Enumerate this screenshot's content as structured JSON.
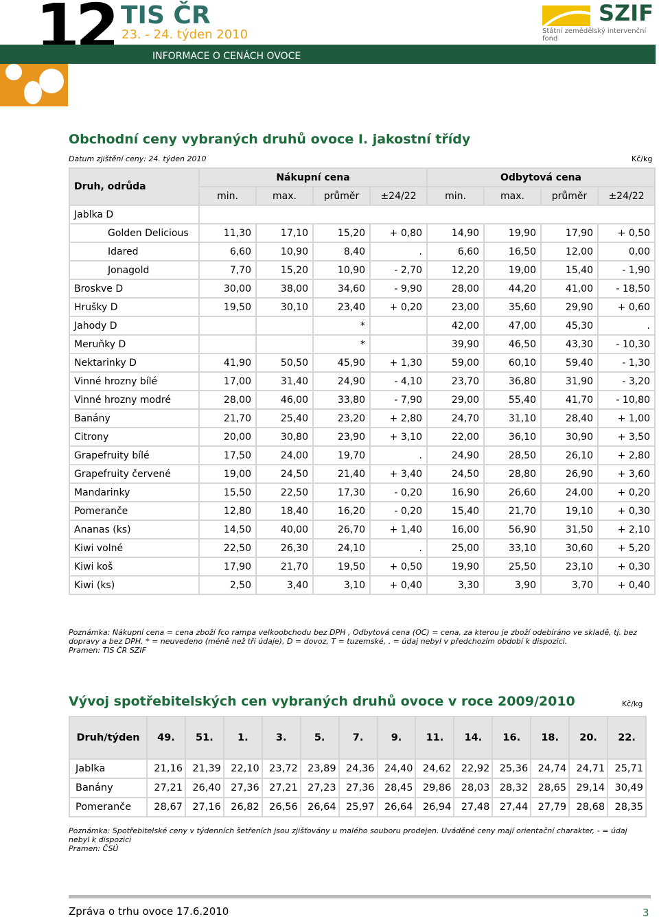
{
  "header": {
    "number": "12",
    "brand": "TIS ČR",
    "week": "23. - 24. týden 2010",
    "subtitle": "INFORMACE O CENÁCH OVOCE",
    "logo": "SZIF",
    "logo_sub": "Státní zemědělský intervenční fond"
  },
  "section1": {
    "title": "Obchodní ceny vybraných druhů ovoce I. jakostní třídy",
    "date": "Datum zjištění ceny: 24. týden 2010",
    "unit": "Kč/kg",
    "head": {
      "label": "Druh, odrůda",
      "groups": [
        "Nákupní cena",
        "Odbytová cena"
      ],
      "sub": [
        "min.",
        "max.",
        "průměr",
        "±24/22",
        "min.",
        "max.",
        "průměr",
        "±24/22"
      ]
    },
    "rows": [
      {
        "label": "Jablka D",
        "items": [
          [
            "Golden Delicious",
            "11,30",
            "17,10",
            "15,20",
            "+ 0,80",
            "14,90",
            "19,90",
            "17,90",
            "+ 0,50"
          ],
          [
            "Idared",
            "6,60",
            "10,90",
            "8,40",
            ".",
            "6,60",
            "16,50",
            "12,00",
            "0,00"
          ],
          [
            "Jonagold",
            "7,70",
            "15,20",
            "10,90",
            "- 2,70",
            "12,20",
            "19,00",
            "15,40",
            "- 1,90"
          ]
        ]
      },
      [
        "Broskve D",
        "30,00",
        "38,00",
        "34,60",
        "- 9,90",
        "28,00",
        "44,20",
        "41,00",
        "- 18,50"
      ],
      [
        "Hrušky D",
        "19,50",
        "30,10",
        "23,40",
        "+ 0,20",
        "23,00",
        "35,60",
        "29,90",
        "+ 0,60"
      ],
      [
        "Jahody D",
        null,
        null,
        "*",
        null,
        "42,00",
        "47,00",
        "45,30",
        "."
      ],
      [
        "Meruňky D",
        null,
        null,
        "*",
        null,
        "39,90",
        "46,50",
        "43,30",
        "- 10,30"
      ],
      [
        "Nektarinky D",
        "41,90",
        "50,50",
        "45,90",
        "+ 1,30",
        "59,00",
        "60,10",
        "59,40",
        "- 1,30"
      ],
      [
        "Vinné hrozny bílé",
        "17,00",
        "31,40",
        "24,90",
        "- 4,10",
        "23,70",
        "36,80",
        "31,90",
        "- 3,20"
      ],
      [
        "Vinné hrozny modré",
        "28,00",
        "46,00",
        "33,80",
        "- 7,90",
        "29,00",
        "55,40",
        "41,70",
        "- 10,80"
      ],
      [
        "Banány",
        "21,70",
        "25,40",
        "23,20",
        "+ 2,80",
        "24,70",
        "31,10",
        "28,40",
        "+ 1,00"
      ],
      [
        "Citrony",
        "20,00",
        "30,80",
        "23,90",
        "+ 3,10",
        "22,00",
        "36,10",
        "30,90",
        "+ 3,50"
      ],
      [
        "Grapefruity bílé",
        "17,50",
        "24,00",
        "19,70",
        ".",
        "24,90",
        "28,50",
        "26,10",
        "+ 2,80"
      ],
      [
        "Grapefruity červené",
        "19,00",
        "24,50",
        "21,40",
        "+ 3,40",
        "24,50",
        "28,80",
        "26,90",
        "+ 3,60"
      ],
      [
        "Mandarinky",
        "15,50",
        "22,50",
        "17,30",
        "- 0,20",
        "16,90",
        "26,60",
        "24,00",
        "+ 0,20"
      ],
      [
        "Pomeranče",
        "12,80",
        "18,40",
        "16,20",
        "- 0,20",
        "15,40",
        "21,70",
        "19,10",
        "+ 0,30"
      ],
      [
        "Ananas (ks)",
        "14,50",
        "40,00",
        "26,70",
        "+ 1,40",
        "16,00",
        "56,90",
        "31,50",
        "+ 2,10"
      ],
      [
        "Kiwi volné",
        "22,50",
        "26,30",
        "24,10",
        ".",
        "25,00",
        "33,10",
        "30,60",
        "+ 5,20"
      ],
      [
        "Kiwi koš",
        "17,90",
        "21,70",
        "19,50",
        "+ 0,50",
        "19,90",
        "25,50",
        "23,10",
        "+ 0,30"
      ],
      [
        "Kiwi (ks)",
        "2,50",
        "3,40",
        "3,10",
        "+ 0,40",
        "3,30",
        "3,90",
        "3,70",
        "+ 0,40"
      ]
    ],
    "note": "Poznámka: Nákupní cena = cena zboží fco rampa velkoobchodu bez DPH , Odbytová cena (OC) = cena, za kterou je zboží odebíráno ve skladě, tj. bez dopravy a bez DPH. * = neuvedeno (méně než tři údaje), D = dovoz, T = tuzemské, . = údaj nebyl v předchozím období k dispozici.",
    "source": "Pramen: TIS ČR SZIF"
  },
  "section2": {
    "title": "Vývoj spotřebitelských cen vybraných druhů ovoce v roce 2009/2010",
    "unit": "Kč/kg",
    "head": [
      "Druh/týden",
      "49.",
      "51.",
      "1.",
      "3.",
      "5.",
      "7.",
      "9.",
      "11.",
      "14.",
      "16.",
      "18.",
      "20.",
      "22."
    ],
    "rows": [
      [
        "Jablka",
        "21,16",
        "21,39",
        "22,10",
        "23,72",
        "23,89",
        "24,36",
        "24,40",
        "24,62",
        "22,92",
        "25,36",
        "24,74",
        "24,71",
        "25,71"
      ],
      [
        "Banány",
        "27,21",
        "26,40",
        "27,36",
        "27,21",
        "27,23",
        "27,36",
        "28,45",
        "29,86",
        "28,03",
        "28,32",
        "28,65",
        "29,14",
        "30,49"
      ],
      [
        "Pomeranče",
        "28,67",
        "27,16",
        "26,82",
        "26,56",
        "26,64",
        "25,97",
        "26,64",
        "26,94",
        "27,48",
        "27,44",
        "27,79",
        "28,68",
        "28,35"
      ]
    ],
    "note": "Poznámka: Spotřebitelské ceny v týdenních šetřeních jsou zjišťovány u malého souboru prodejen.  Uváděné ceny mají orientační charakter, - = údaj nebyl k dispozici",
    "source": "Pramen: ČSÚ"
  },
  "footer": {
    "text": "Zpráva o trhu ovoce 17.6.2010",
    "page": "3"
  }
}
